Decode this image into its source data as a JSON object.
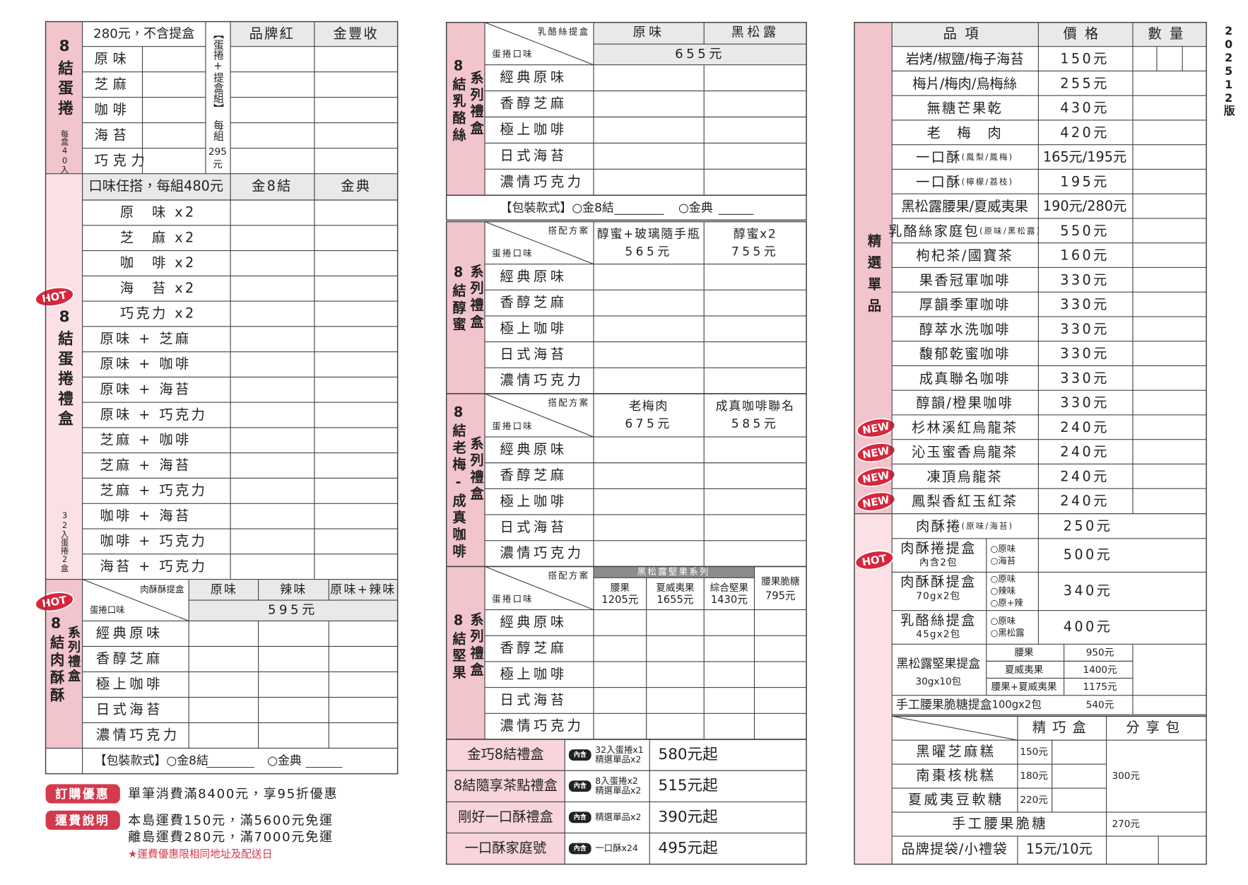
{
  "version": "202512版",
  "egg_roll": {
    "title": "8結蛋捲",
    "note": "每盒40入",
    "header": "280元，不含提盒",
    "set": "【蛋捲+提盒組】",
    "set_price_label": "每組",
    "set_price": "295",
    "set_price_unit": "元",
    "columns": [
      "品牌紅",
      "金豐收"
    ],
    "flavors": [
      "原味",
      "芝麻",
      "咖啡",
      "海苔",
      "巧克力"
    ]
  },
  "gift_box": {
    "badge": "HOT",
    "title": "8結蛋捲禮盒",
    "note": "32入蛋捲2盒",
    "header": "口味任搭，每組480元",
    "columns": [
      "金8結",
      "金典"
    ],
    "rows": [
      "原　味 x2",
      "芝　麻 x2",
      "咖　啡 x2",
      "海　苔 x2",
      "巧克力 x2",
      "原味 + 芝麻",
      "原味 + 咖啡",
      "原味 + 海苔",
      "原味 + 巧克力",
      "芝麻 + 咖啡",
      "芝麻 + 海苔",
      "芝麻 + 巧克力",
      "咖啡 + 海苔",
      "咖啡 + 巧克力",
      "海苔 + 巧克力"
    ]
  },
  "pork": {
    "badge": "HOT",
    "title": "8結肉酥酥",
    "subtitle": "系列禮盒",
    "corner_top": "肉酥酥提盒",
    "corner_bottom": "蛋捲口味",
    "columns": [
      "原味",
      "辣味",
      "原味+辣味"
    ],
    "price": "595元",
    "flavors": [
      "經典原味",
      "香醇芝麻",
      "極上咖啡",
      "日式海苔",
      "濃情巧克力"
    ],
    "packaging": [
      "【包裝款式】○金8結",
      "○金典"
    ]
  },
  "notes": [
    {
      "tag": "訂購優惠",
      "lines": [
        "單筆消費滿8400元，享95折優惠"
      ]
    },
    {
      "tag": "運費說明",
      "lines": [
        "本島運費150元，滿5600元免運",
        "離島運費280元，滿7000元免運"
      ]
    }
  ],
  "footnote": "★運費優惠限相同地址及配送日",
  "boxes": [
    {
      "title": "8結乳酪絲",
      "subtitle": "系列禮盒",
      "corner_top": "乳酪絲提盒",
      "corner_bottom": "蛋捲口味",
      "columns": [
        {
          "name": "原味"
        },
        {
          "name": "黑松露"
        }
      ],
      "price": "655元",
      "flavors": [
        "經典原味",
        "香醇芝麻",
        "極上咖啡",
        "日式海苔",
        "濃情巧克力"
      ],
      "packaging": [
        "【包裝款式】○金8結",
        "○金典"
      ]
    },
    {
      "title": "8結醇蜜",
      "subtitle": "系列禮盒",
      "corner_top": "搭配方案",
      "corner_bottom": "蛋捲口味",
      "columns": [
        {
          "name": "醇蜜+玻璃隨手瓶",
          "price": "565元"
        },
        {
          "name": "醇蜜x2",
          "price": "755元"
        }
      ],
      "flavors": [
        "經典原味",
        "香醇芝麻",
        "極上咖啡",
        "日式海苔",
        "濃情巧克力"
      ]
    },
    {
      "title": "8結老梅-成真咖啡",
      "subtitle": "系列禮盒",
      "corner_top": "搭配方案",
      "corner_bottom": "蛋捲口味",
      "columns": [
        {
          "name": "老梅肉",
          "price": "675元"
        },
        {
          "name": "成真咖啡聯名",
          "price": "585元"
        }
      ],
      "flavors": [
        "經典原味",
        "香醇芝麻",
        "極上咖啡",
        "日式海苔",
        "濃情巧克力"
      ]
    },
    {
      "title": "8結堅果",
      "subtitle": "系列禮盒",
      "corner_top": "搭配方案",
      "corner_bottom": "蛋捲口味",
      "group": "黑松露堅果系列",
      "columns": [
        {
          "name": "腰果",
          "price": "1205元"
        },
        {
          "name": "夏威夷果",
          "price": "1655元"
        },
        {
          "name": "綜合堅果",
          "price": "1430元"
        },
        {
          "name": "腰果脆糖",
          "price": "795元"
        }
      ],
      "flavors": [
        "經典原味",
        "香醇芝麻",
        "極上咖啡",
        "日式海苔",
        "濃情巧克力"
      ]
    }
  ],
  "gift_sets": [
    {
      "name": "金巧8結禮盒",
      "tag": "內含",
      "contents": [
        "32入蛋捲x1",
        "精選單品x2"
      ],
      "price": "580元起"
    },
    {
      "name": "8結隨享茶點禮盒",
      "tag": "內含",
      "contents": [
        "8入蛋捲x2",
        "精選單品x2"
      ],
      "price": "515元起"
    },
    {
      "name": "剛好一口酥禮盒",
      "tag": "內含",
      "contents": [
        "精選單品x2"
      ],
      "price": "390元起"
    },
    {
      "name": "一口酥家庭號",
      "tag": "內含",
      "contents": [
        "一口酥x24"
      ],
      "price": "495元起"
    }
  ],
  "singles": {
    "title": "精選單品",
    "headers": [
      "品項",
      "價格",
      "數量"
    ],
    "items": [
      {
        "name": "岩烤/椒鹽/梅子海苔",
        "price": "150元"
      },
      {
        "name": "梅片/梅肉/烏梅絲",
        "price": "255元"
      },
      {
        "name": "無糖芒果乾",
        "price": "430元"
      },
      {
        "name": "老　梅　肉",
        "price": "420元"
      },
      {
        "name": "一口酥",
        "note": "(鳳梨/鳳梅)",
        "price": "165元/195元"
      },
      {
        "name": "一口酥",
        "note": "(檸檬/荔枝)",
        "price": "195元"
      },
      {
        "name": "黑松露腰果/夏威夷果",
        "price": "190元/280元"
      },
      {
        "name": "乳酪絲家庭包",
        "note": "(原味/黑松露)",
        "price": "550元"
      },
      {
        "name": "枸杞茶/國寶茶",
        "price": "160元"
      },
      {
        "name": "果香冠軍咖啡",
        "price": "330元"
      },
      {
        "name": "厚韻季軍咖啡",
        "price": "330元"
      },
      {
        "name": "醇萃水洗咖啡",
        "price": "330元"
      },
      {
        "name": "馥郁乾蜜咖啡",
        "price": "330元"
      },
      {
        "name": "成真聯名咖啡",
        "price": "330元"
      },
      {
        "name": "醇韻/橙果咖啡",
        "price": "330元"
      },
      {
        "badge": "NEW",
        "name": "杉林溪紅烏龍茶",
        "price": "240元"
      },
      {
        "badge": "NEW",
        "name": "沁玉蜜香烏龍茶",
        "price": "240元"
      },
      {
        "badge": "NEW",
        "name": "凍頂烏龍茶",
        "price": "240元"
      },
      {
        "badge": "NEW",
        "name": "鳳梨香紅玉紅茶",
        "price": "240元"
      }
    ]
  },
  "combos": {
    "items": [
      {
        "name": "肉酥捲",
        "note": "(原味/海苔)",
        "price": "250元"
      },
      {
        "badge": "HOT",
        "name": "肉酥捲提盒",
        "spec": "內含2包",
        "options": [
          "○原味",
          "○海苔"
        ],
        "price": "500元"
      },
      {
        "name": "肉酥酥提盒",
        "spec": "70gx2包",
        "options": [
          "○原味",
          "○辣味",
          "○原+辣"
        ],
        "price": "340元"
      },
      {
        "name": "乳酪絲提盒",
        "spec": "45gx2包",
        "options": [
          "○原味",
          "○黑松露"
        ],
        "price": "400元"
      }
    ],
    "nut_box": {
      "name": "黑松露堅果提盒",
      "spec": "30gx10包",
      "options": [
        {
          "name": "腰果",
          "price": "950元"
        },
        {
          "name": "夏威夷果",
          "price": "1400元"
        },
        {
          "name": "腰果+夏威夷果",
          "price": "1175元"
        }
      ]
    },
    "brittle_box": {
      "name": "手工腰果脆糖提盒",
      "spec": "100gx2包",
      "price": "540元"
    }
  },
  "sweets": {
    "headers": [
      "精巧盒",
      "分享包"
    ],
    "items": [
      {
        "name": "黑曜芝麻糕",
        "price": "150元"
      },
      {
        "name": "南棗核桃糕",
        "price": "180元"
      },
      {
        "name": "夏威夷豆軟糖",
        "price": "220元"
      }
    ],
    "share_price": "300元",
    "brittle": {
      "name": "手工腰果脆糖",
      "share_price": "270元"
    },
    "bag": {
      "name": "品牌提袋/小禮袋",
      "price": "15元/10元"
    }
  }
}
